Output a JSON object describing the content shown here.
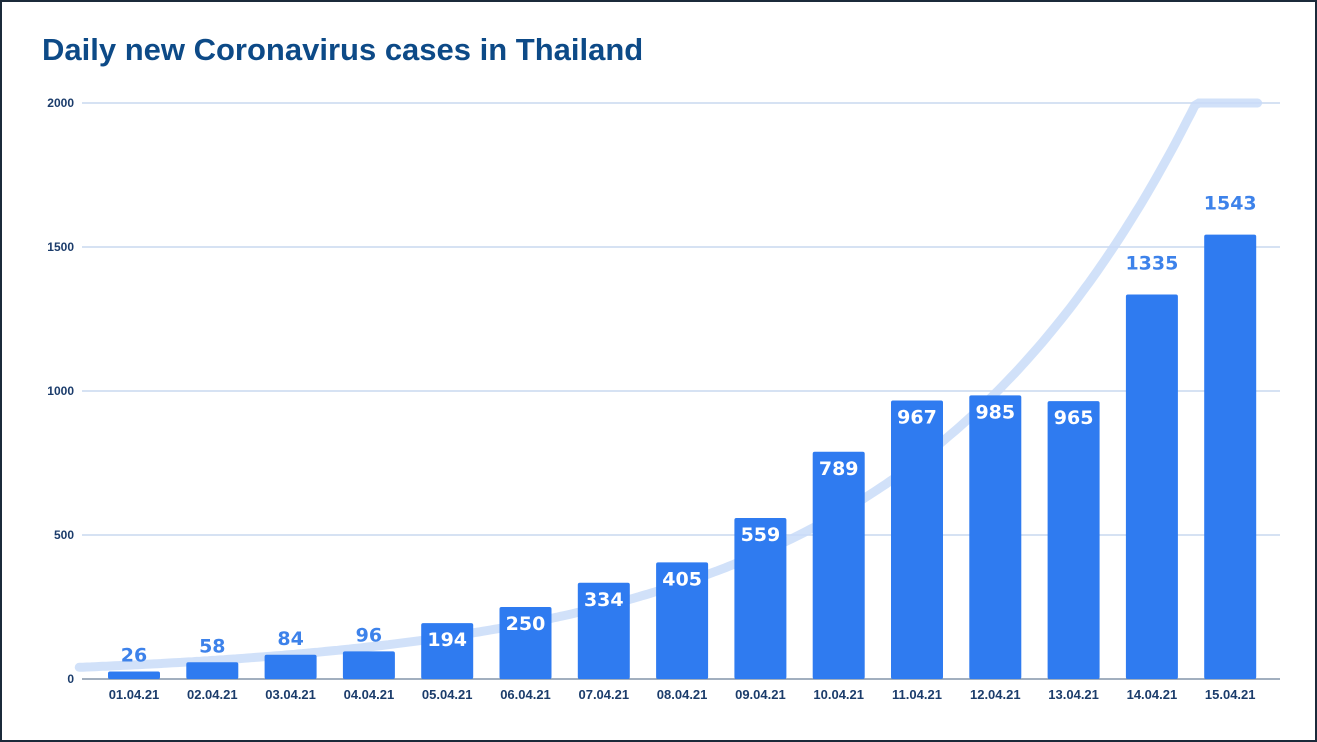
{
  "chart_data": {
    "type": "bar",
    "title": "Daily new Coronavirus cases in Thailand",
    "xlabel": "",
    "ylabel": "",
    "categories": [
      "01.04.21",
      "02.04.21",
      "03.04.21",
      "04.04.21",
      "05.04.21",
      "06.04.21",
      "07.04.21",
      "08.04.21",
      "09.04.21",
      "10.04.21",
      "11.04.21",
      "12.04.21",
      "13.04.21",
      "14.04.21",
      "15.04.21"
    ],
    "values": [
      26,
      58,
      84,
      96,
      194,
      250,
      334,
      405,
      559,
      789,
      967,
      985,
      965,
      1335,
      1543
    ],
    "ylim": [
      0,
      2000
    ],
    "yticks": [
      0,
      500,
      1000,
      1500,
      2000
    ],
    "grid": true,
    "legend": "none",
    "trendline": {
      "type": "exponential",
      "color": "#c9dcf8"
    },
    "bar_color": "#2f7bf0",
    "label_color": "#3d82ea"
  }
}
